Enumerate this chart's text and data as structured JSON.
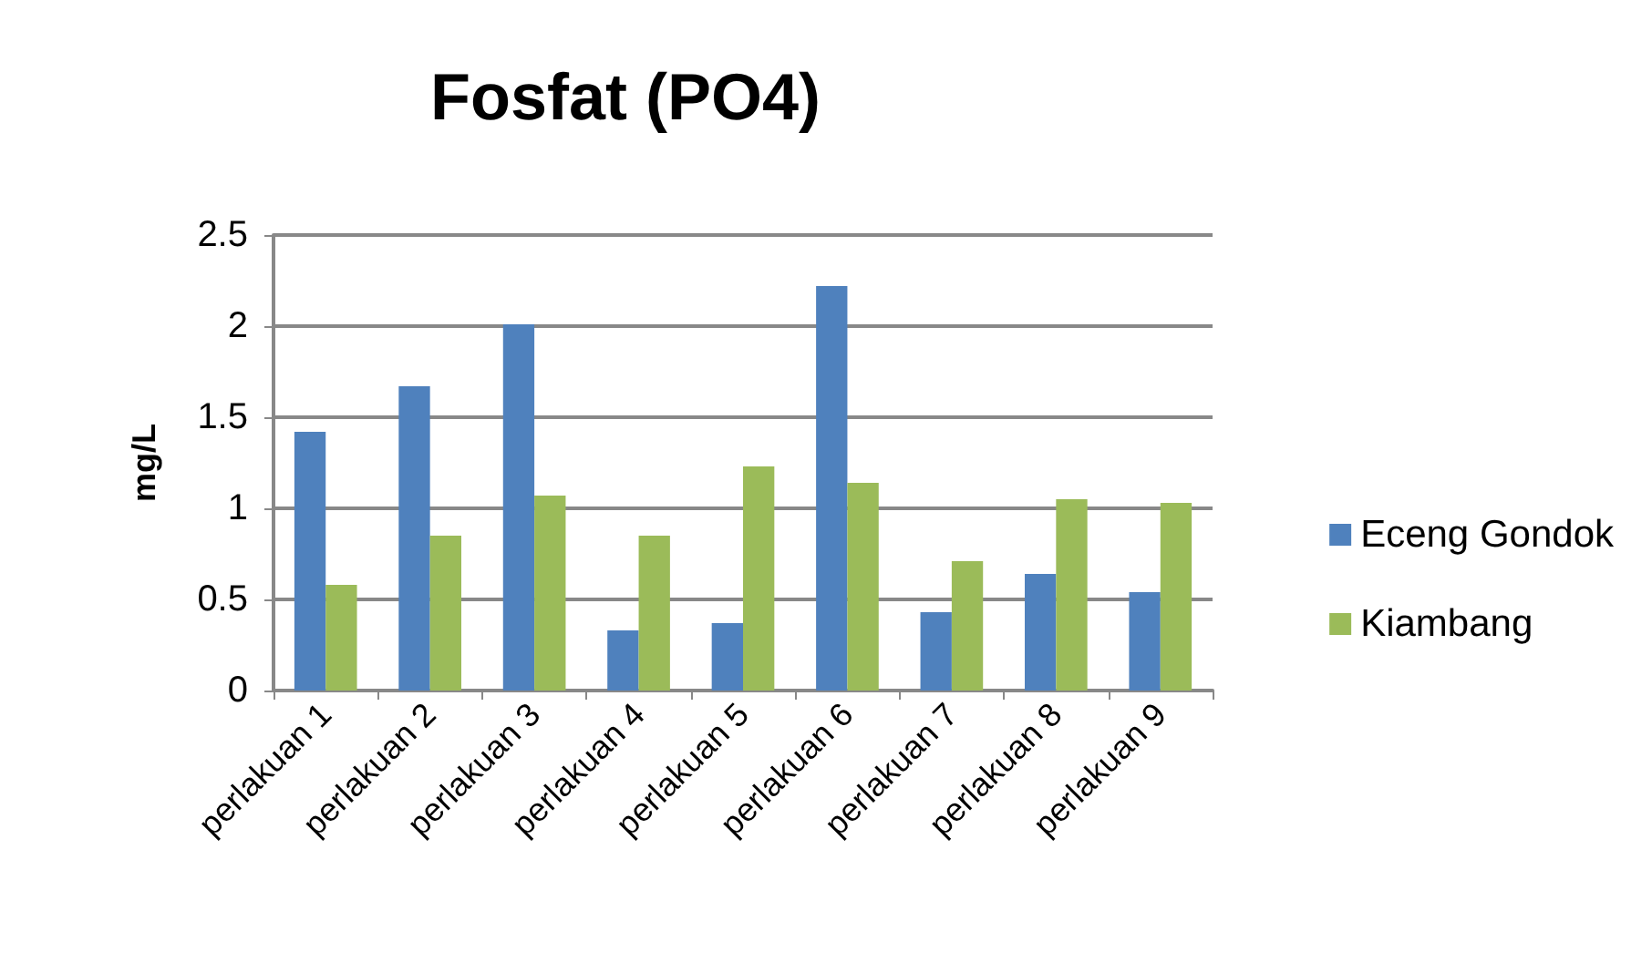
{
  "chart_data": {
    "type": "bar",
    "title": "Fosfat (PO4)",
    "ylabel": "mg/L",
    "categories": [
      "perlakuan 1",
      "perlakuan 2",
      "perlakuan 3",
      "perlakuan 4",
      "perlakuan 5",
      "perlakuan 6",
      "perlakuan 7",
      "perlakuan 8",
      "perlakuan 9"
    ],
    "series": [
      {
        "name": "Eceng Gondok",
        "color": "#4f81bd",
        "values": [
          1.42,
          1.67,
          2.01,
          0.33,
          0.37,
          2.22,
          0.43,
          0.64,
          0.54
        ]
      },
      {
        "name": "Kiambang",
        "color": "#9bbb59",
        "values": [
          0.58,
          0.85,
          1.07,
          0.85,
          1.23,
          1.14,
          0.71,
          1.05,
          1.03
        ]
      }
    ],
    "ylim": [
      0,
      2.5
    ],
    "yticks": [
      0,
      0.5,
      1,
      1.5,
      2,
      2.5
    ],
    "grid": "y",
    "legend": "right"
  }
}
